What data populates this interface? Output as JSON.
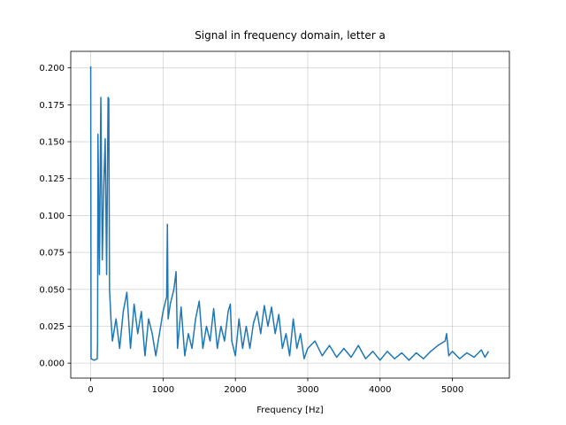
{
  "chart_data": {
    "type": "line",
    "title": "Signal in frequency domain, letter a",
    "xlabel": "Frequency [Hz]",
    "x": [
      0,
      5,
      50,
      90,
      95,
      100,
      120,
      140,
      160,
      180,
      200,
      220,
      240,
      250,
      260,
      280,
      300,
      350,
      400,
      450,
      500,
      550,
      600,
      650,
      700,
      750,
      800,
      850,
      900,
      950,
      1000,
      1050,
      1060,
      1070,
      1100,
      1150,
      1180,
      1200,
      1250,
      1300,
      1350,
      1400,
      1450,
      1500,
      1550,
      1600,
      1650,
      1700,
      1750,
      1800,
      1850,
      1900,
      1930,
      1950,
      2000,
      2050,
      2100,
      2150,
      2200,
      2250,
      2300,
      2350,
      2400,
      2450,
      2500,
      2550,
      2600,
      2650,
      2700,
      2750,
      2800,
      2850,
      2900,
      2950,
      3000,
      3100,
      3200,
      3300,
      3400,
      3500,
      3600,
      3700,
      3800,
      3900,
      4000,
      4100,
      4200,
      4300,
      4400,
      4500,
      4600,
      4700,
      4800,
      4900,
      4920,
      4950,
      5000,
      5100,
      5200,
      5300,
      5400,
      5450,
      5500
    ],
    "series": [
      {
        "color": "#1f77b4",
        "values": [
          0.201,
          0.003,
          0.002,
          0.003,
          0.015,
          0.155,
          0.06,
          0.18,
          0.07,
          0.12,
          0.152,
          0.06,
          0.18,
          0.179,
          0.05,
          0.03,
          0.015,
          0.03,
          0.01,
          0.035,
          0.048,
          0.01,
          0.04,
          0.02,
          0.035,
          0.005,
          0.03,
          0.02,
          0.005,
          0.02,
          0.035,
          0.045,
          0.094,
          0.03,
          0.04,
          0.05,
          0.062,
          0.01,
          0.038,
          0.005,
          0.02,
          0.01,
          0.03,
          0.042,
          0.01,
          0.025,
          0.015,
          0.037,
          0.01,
          0.025,
          0.015,
          0.035,
          0.04,
          0.015,
          0.005,
          0.03,
          0.01,
          0.025,
          0.01,
          0.027,
          0.035,
          0.02,
          0.039,
          0.025,
          0.038,
          0.02,
          0.033,
          0.01,
          0.02,
          0.005,
          0.03,
          0.01,
          0.02,
          0.003,
          0.01,
          0.015,
          0.005,
          0.012,
          0.004,
          0.01,
          0.004,
          0.012,
          0.003,
          0.008,
          0.002,
          0.008,
          0.003,
          0.007,
          0.002,
          0.007,
          0.003,
          0.008,
          0.012,
          0.015,
          0.02,
          0.005,
          0.008,
          0.003,
          0.007,
          0.004,
          0.009,
          0.004,
          0.008
        ]
      }
    ],
    "xlim": [
      -276,
      5788
    ],
    "ylim": [
      -0.0101,
      0.2112
    ],
    "xticks": [
      0,
      1000,
      2000,
      3000,
      4000,
      5000
    ],
    "yticks": [
      {
        "value": 0,
        "label": "0.000"
      },
      {
        "value": 0.025,
        "label": "0.025"
      },
      {
        "value": 0.05,
        "label": "0.050"
      },
      {
        "value": 0.075,
        "label": "0.075"
      },
      {
        "value": 0.1,
        "label": "0.100"
      },
      {
        "value": 0.125,
        "label": "0.125"
      },
      {
        "value": 0.15,
        "label": "0.150"
      },
      {
        "value": 0.175,
        "label": "0.175"
      },
      {
        "value": 0.2,
        "label": "0.200"
      }
    ],
    "grid": true
  }
}
